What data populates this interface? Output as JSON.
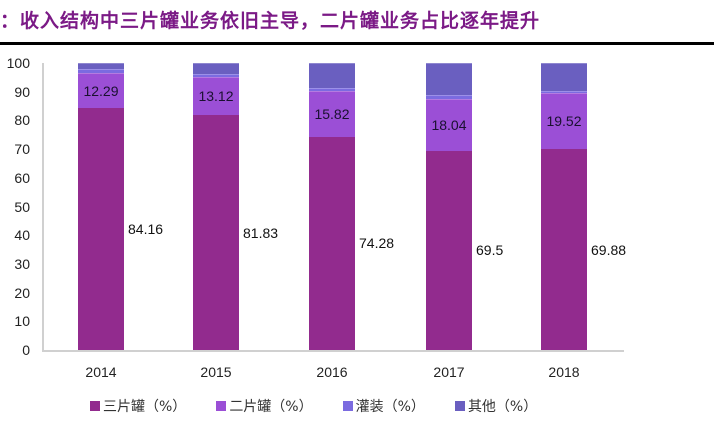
{
  "header": {
    "title": "：收入结构中三片罐业务依旧主导，二片罐业务占比逐年提升"
  },
  "colors": {
    "three_piece": "#922b8e",
    "two_piece": "#9b4fd6",
    "filling": "#7b6be0",
    "other": "#6a5fc0"
  },
  "chart_data": {
    "type": "bar",
    "stacked": true,
    "title": "收入结构中三片罐业务依旧主导，二片罐业务占比逐年提升",
    "xlabel": "",
    "ylabel": "",
    "ylim": [
      0,
      100
    ],
    "yticks": [
      0,
      10,
      20,
      30,
      40,
      50,
      60,
      70,
      80,
      90,
      100
    ],
    "categories": [
      "2014",
      "2015",
      "2016",
      "2017",
      "2018"
    ],
    "series": [
      {
        "name": "三片罐（%）",
        "values": [
          84.16,
          81.83,
          74.28,
          69.5,
          69.88
        ]
      },
      {
        "name": "二片罐（%）",
        "values": [
          12.29,
          13.12,
          15.82,
          18.04,
          19.52
        ]
      },
      {
        "name": "灌装（%）",
        "values": [
          1.5,
          1.3,
          1.2,
          1.2,
          1.0
        ]
      },
      {
        "name": "其他（%）",
        "values": [
          2.05,
          3.75,
          8.7,
          11.26,
          9.6
        ]
      }
    ],
    "data_labels": {
      "三片罐（%）": [
        "84.16",
        "81.83",
        "74.28",
        "69.5",
        "69.88"
      ],
      "二片罐（%）": [
        "12.29",
        "13.12",
        "15.82",
        "18.04",
        "19.52"
      ]
    },
    "grid": false,
    "legend_position": "bottom"
  },
  "legend": [
    {
      "label": "三片罐（%）"
    },
    {
      "label": "二片罐（%）"
    },
    {
      "label": "灌装（%）"
    },
    {
      "label": "其他（%）"
    }
  ]
}
